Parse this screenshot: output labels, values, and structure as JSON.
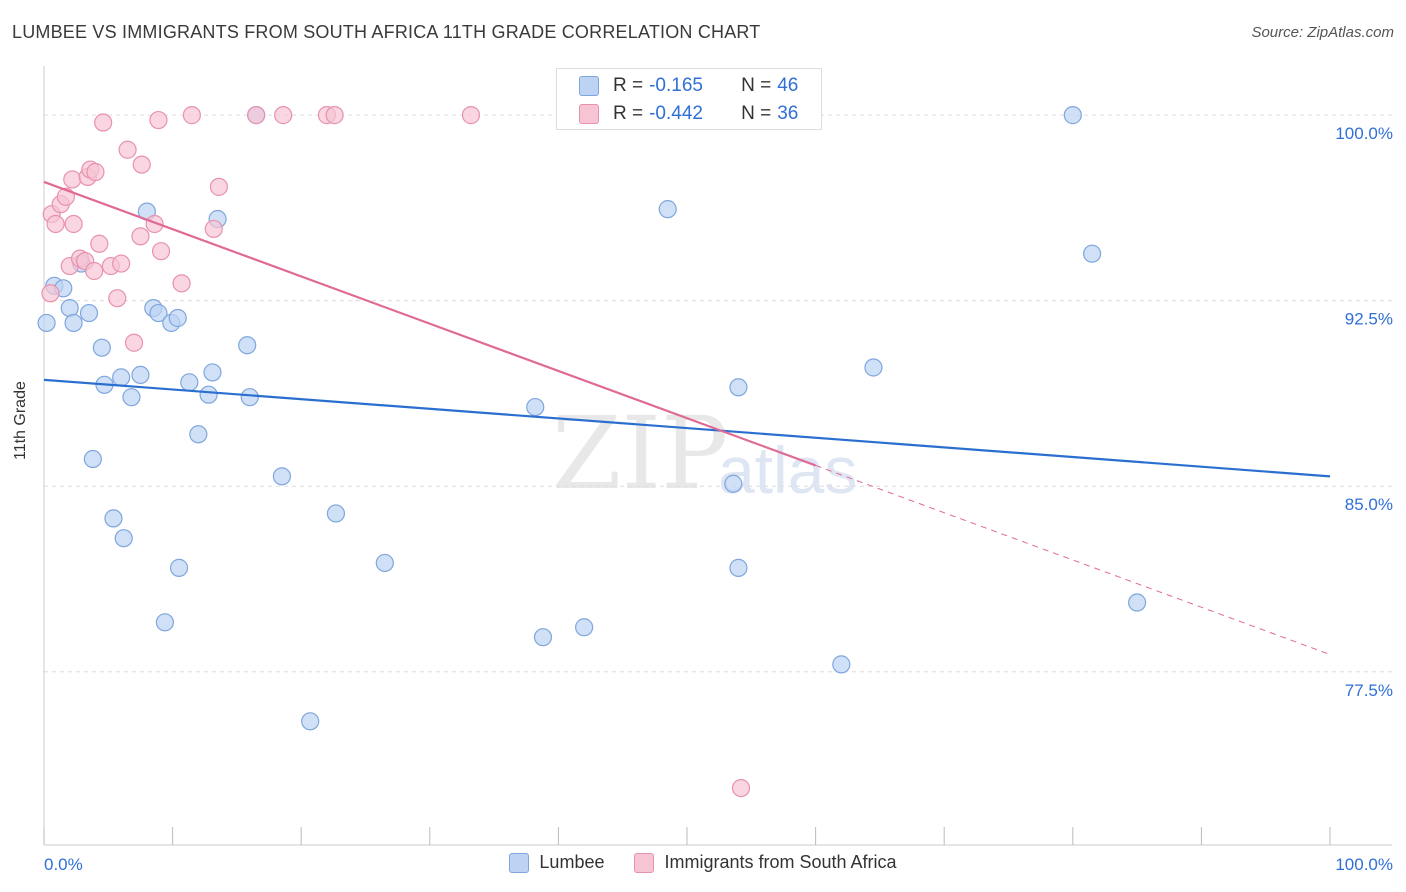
{
  "title": "LUMBEE VS IMMIGRANTS FROM SOUTH AFRICA 11TH GRADE CORRELATION CHART",
  "source": "Source: ZipAtlas.com",
  "watermark": {
    "zip": "ZIP",
    "atlas": "atlas"
  },
  "legend": {
    "rows": [
      {
        "r_label": "R = ",
        "r_value": "-0.165",
        "n_label": "N = ",
        "n_value": "46"
      },
      {
        "r_label": "R = ",
        "r_value": "-0.442",
        "n_label": "N = ",
        "n_value": "36"
      }
    ]
  },
  "bottom_legend": [
    "Lumbee",
    "Immigrants from South Africa"
  ],
  "colors": {
    "blue_fill": "#bcd3f3",
    "blue_stroke": "#7fa6dd",
    "blue_line": "#2a6fd0",
    "pink_fill": "#f7c4d4",
    "pink_stroke": "#e892ad",
    "pink_line": "#e06a96",
    "grid": "#dddddd",
    "axis_label": "#2f6fd6"
  },
  "chart_data": {
    "type": "scatter",
    "title": "LUMBEE VS IMMIGRANTS FROM SOUTH AFRICA 11TH GRADE CORRELATION CHART",
    "xlabel": "",
    "ylabel": "11th Grade",
    "xlim": [
      0,
      100
    ],
    "ylim": [
      70.5,
      101.5
    ],
    "x_tick_labels": [
      "0.0%",
      "100.0%"
    ],
    "y_ticks": [
      77.5,
      85.0,
      92.5,
      100.0
    ],
    "y_tick_labels": [
      "77.5%",
      "85.0%",
      "92.5%",
      "100.0%"
    ],
    "series": [
      {
        "name": "Lumbee",
        "r": -0.165,
        "n": 46,
        "trend": {
          "x": [
            0,
            100
          ],
          "y": [
            89.3,
            85.4
          ],
          "dashed_from": null
        },
        "points": [
          [
            0.2,
            91.6
          ],
          [
            0.8,
            93.1
          ],
          [
            1.5,
            93.0
          ],
          [
            2.0,
            92.2
          ],
          [
            2.3,
            91.6
          ],
          [
            3.5,
            92.0
          ],
          [
            2.9,
            94.0
          ],
          [
            3.8,
            86.1
          ],
          [
            4.5,
            90.6
          ],
          [
            4.7,
            89.1
          ],
          [
            5.4,
            83.7
          ],
          [
            6.0,
            89.4
          ],
          [
            6.2,
            82.9
          ],
          [
            6.8,
            88.6
          ],
          [
            7.5,
            89.5
          ],
          [
            8.0,
            96.1
          ],
          [
            8.5,
            92.2
          ],
          [
            8.9,
            92.0
          ],
          [
            9.4,
            79.5
          ],
          [
            9.9,
            91.6
          ],
          [
            10.4,
            91.8
          ],
          [
            10.5,
            81.7
          ],
          [
            11.3,
            89.2
          ],
          [
            12.0,
            87.1
          ],
          [
            12.8,
            88.7
          ],
          [
            13.1,
            89.6
          ],
          [
            13.5,
            95.8
          ],
          [
            15.8,
            90.7
          ],
          [
            16.0,
            88.6
          ],
          [
            16.5,
            100.0
          ],
          [
            18.5,
            85.4
          ],
          [
            20.7,
            75.5
          ],
          [
            22.7,
            83.9
          ],
          [
            26.5,
            81.9
          ],
          [
            38.2,
            88.2
          ],
          [
            38.8,
            78.9
          ],
          [
            42.0,
            79.3
          ],
          [
            48.5,
            96.2
          ],
          [
            53.6,
            85.1
          ],
          [
            54.0,
            81.7
          ],
          [
            54.0,
            89.0
          ],
          [
            62.0,
            77.8
          ],
          [
            64.5,
            89.8
          ],
          [
            80.0,
            100.0
          ],
          [
            81.5,
            94.4
          ],
          [
            85.0,
            80.3
          ]
        ]
      },
      {
        "name": "Immigrants from South Africa",
        "r": -0.442,
        "n": 36,
        "trend": {
          "x": [
            0,
            100
          ],
          "y": [
            97.3,
            78.2
          ],
          "dashed_from": 60.0
        },
        "points": [
          [
            0.5,
            92.8
          ],
          [
            0.6,
            96.0
          ],
          [
            0.9,
            95.6
          ],
          [
            1.3,
            96.4
          ],
          [
            1.7,
            96.7
          ],
          [
            2.0,
            93.9
          ],
          [
            2.2,
            97.4
          ],
          [
            2.3,
            95.6
          ],
          [
            2.8,
            94.2
          ],
          [
            3.2,
            94.1
          ],
          [
            3.4,
            97.5
          ],
          [
            3.6,
            97.8
          ],
          [
            3.9,
            93.7
          ],
          [
            4.0,
            97.7
          ],
          [
            4.3,
            94.8
          ],
          [
            4.6,
            99.7
          ],
          [
            5.2,
            93.9
          ],
          [
            5.7,
            92.6
          ],
          [
            6.0,
            94.0
          ],
          [
            6.5,
            98.6
          ],
          [
            7.0,
            90.8
          ],
          [
            7.5,
            95.1
          ],
          [
            7.6,
            98.0
          ],
          [
            8.6,
            95.6
          ],
          [
            8.9,
            99.8
          ],
          [
            9.1,
            94.5
          ],
          [
            10.7,
            93.2
          ],
          [
            11.5,
            100.0
          ],
          [
            13.2,
            95.4
          ],
          [
            13.6,
            97.1
          ],
          [
            16.5,
            100.0
          ],
          [
            18.6,
            100.0
          ],
          [
            22.0,
            100.0
          ],
          [
            22.6,
            100.0
          ],
          [
            33.2,
            100.0
          ],
          [
            54.2,
            72.8
          ]
        ]
      }
    ]
  }
}
